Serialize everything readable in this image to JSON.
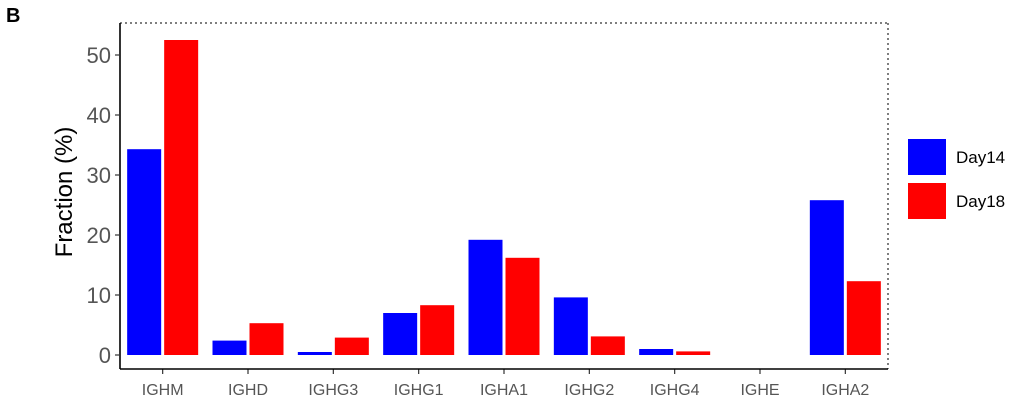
{
  "panel_label": "B",
  "chart_data": {
    "type": "bar",
    "ylabel": "Fraction (%)",
    "xlabel": "",
    "ylim": [
      0,
      55
    ],
    "yticks": [
      0,
      10,
      20,
      30,
      40,
      50
    ],
    "categories": [
      "IGHM",
      "IGHD",
      "IGHG3",
      "IGHG1",
      "IGHA1",
      "IGHG2",
      "IGHG4",
      "IGHE",
      "IGHA2"
    ],
    "series": [
      {
        "name": "Day14",
        "color": "#0000ff",
        "values": [
          34.3,
          2.4,
          0.5,
          7.0,
          19.2,
          9.6,
          1.0,
          0.0,
          25.8
        ]
      },
      {
        "name": "Day18",
        "color": "#ff0000",
        "values": [
          52.5,
          5.3,
          2.9,
          8.3,
          16.2,
          3.1,
          0.6,
          0.0,
          12.3
        ]
      }
    ],
    "legend_position": "right",
    "grid": false
  }
}
